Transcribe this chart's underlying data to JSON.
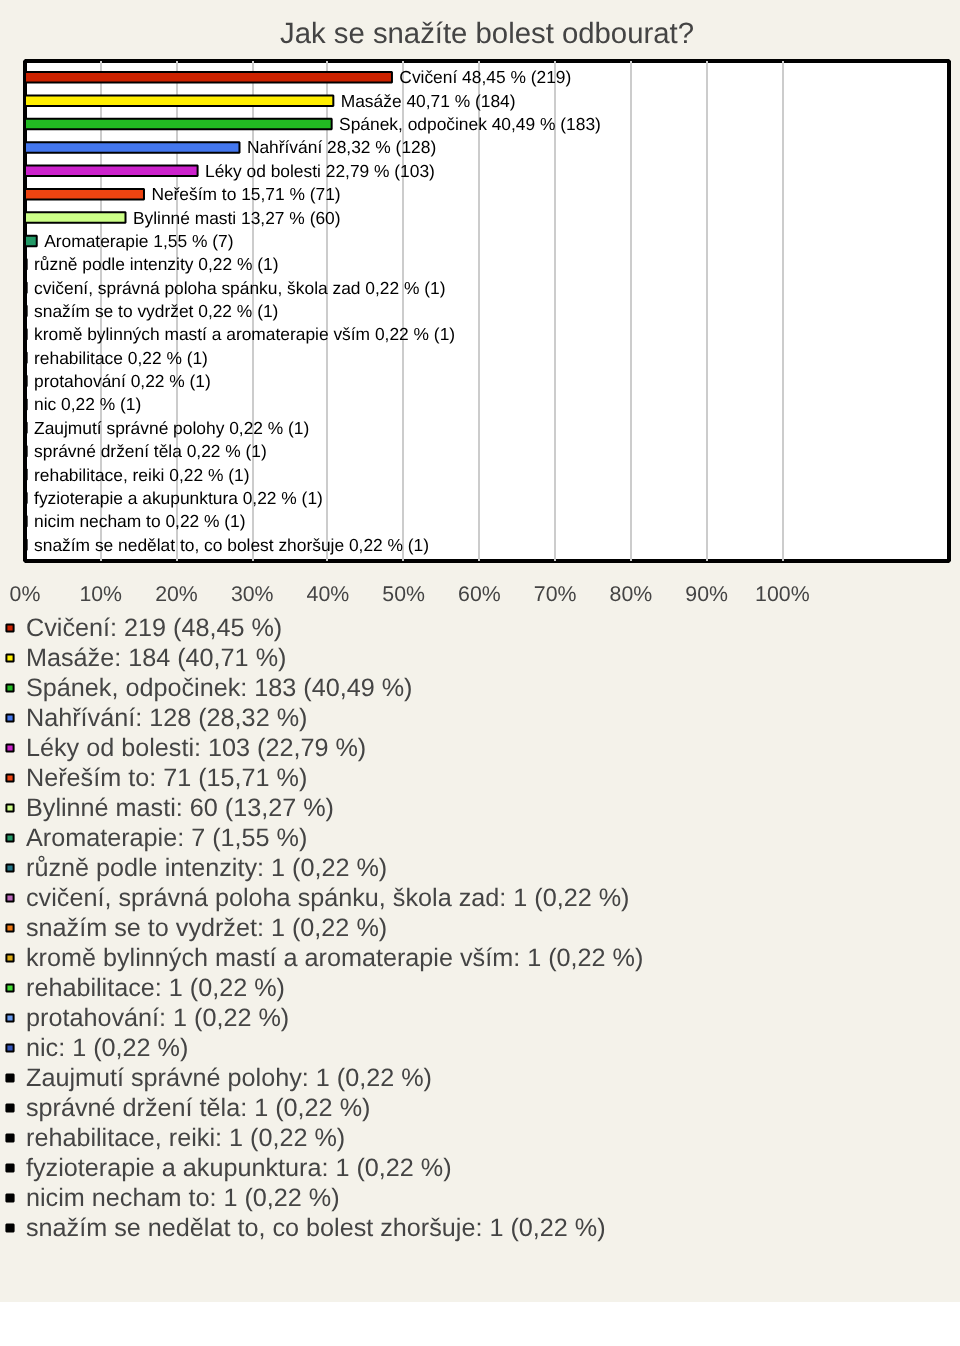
{
  "chart_data": {
    "type": "bar",
    "orientation": "horizontal",
    "title": "Jak se snažíte bolest odbourat?",
    "categories": [
      null,
      null,
      null,
      null,
      null,
      null,
      null,
      null,
      null,
      null,
      null,
      null,
      null,
      null,
      null,
      null,
      null,
      null,
      null,
      null,
      null
    ],
    "series": [
      {
        "name": "Cvičení: 219 (48,45 %)",
        "color": "#cc2200",
        "values": [
          48.45,
          null,
          null,
          null,
          null,
          null,
          null,
          null,
          null,
          null,
          null,
          null,
          null,
          null,
          null,
          null,
          null,
          null,
          null,
          null,
          null
        ],
        "value_labels": [
          "Cvičení 48,45 % (219)",
          null,
          null,
          null,
          null,
          null,
          null,
          null,
          null,
          null,
          null,
          null,
          null,
          null,
          null,
          null,
          null,
          null,
          null,
          null,
          null
        ]
      },
      {
        "name": "Masáže: 184 (40,71 %)",
        "color": "#ffee00",
        "values": [
          null,
          40.71,
          null,
          null,
          null,
          null,
          null,
          null,
          null,
          null,
          null,
          null,
          null,
          null,
          null,
          null,
          null,
          null,
          null,
          null,
          null
        ],
        "value_labels": [
          null,
          "Masáže 40,71 % (184)",
          null,
          null,
          null,
          null,
          null,
          null,
          null,
          null,
          null,
          null,
          null,
          null,
          null,
          null,
          null,
          null,
          null,
          null,
          null
        ]
      },
      {
        "name": "Spánek, odpočinek: 183 (40,49 %)",
        "color": "#22bb22",
        "values": [
          null,
          null,
          40.49,
          null,
          null,
          null,
          null,
          null,
          null,
          null,
          null,
          null,
          null,
          null,
          null,
          null,
          null,
          null,
          null,
          null,
          null
        ],
        "value_labels": [
          null,
          null,
          "Spánek, odpočinek 40,49 % (183)",
          null,
          null,
          null,
          null,
          null,
          null,
          null,
          null,
          null,
          null,
          null,
          null,
          null,
          null,
          null,
          null,
          null,
          null
        ]
      },
      {
        "name": "Nahřívání: 128 (28,32 %)",
        "color": "#4477ee",
        "values": [
          null,
          null,
          null,
          28.32,
          null,
          null,
          null,
          null,
          null,
          null,
          null,
          null,
          null,
          null,
          null,
          null,
          null,
          null,
          null,
          null,
          null
        ],
        "value_labels": [
          null,
          null,
          null,
          "Nahřívání 28,32 % (128)",
          null,
          null,
          null,
          null,
          null,
          null,
          null,
          null,
          null,
          null,
          null,
          null,
          null,
          null,
          null,
          null,
          null
        ]
      },
      {
        "name": "Léky od bolesti: 103 (22,79 %)",
        "color": "#cc22cc",
        "values": [
          null,
          null,
          null,
          null,
          22.79,
          null,
          null,
          null,
          null,
          null,
          null,
          null,
          null,
          null,
          null,
          null,
          null,
          null,
          null,
          null,
          null
        ],
        "value_labels": [
          null,
          null,
          null,
          null,
          "Léky od bolesti 22,79 % (103)",
          null,
          null,
          null,
          null,
          null,
          null,
          null,
          null,
          null,
          null,
          null,
          null,
          null,
          null,
          null,
          null
        ]
      },
      {
        "name": "Neřeším to: 71 (15,71 %)",
        "color": "#ee4411",
        "values": [
          null,
          null,
          null,
          null,
          null,
          15.71,
          null,
          null,
          null,
          null,
          null,
          null,
          null,
          null,
          null,
          null,
          null,
          null,
          null,
          null,
          null
        ],
        "value_labels": [
          null,
          null,
          null,
          null,
          null,
          "Neřeším to 15,71 % (71)",
          null,
          null,
          null,
          null,
          null,
          null,
          null,
          null,
          null,
          null,
          null,
          null,
          null,
          null,
          null
        ]
      },
      {
        "name": "Bylinné masti: 60 (13,27 %)",
        "color": "#ccff88",
        "values": [
          null,
          null,
          null,
          null,
          null,
          null,
          13.27,
          null,
          null,
          null,
          null,
          null,
          null,
          null,
          null,
          null,
          null,
          null,
          null,
          null,
          null
        ],
        "value_labels": [
          null,
          null,
          null,
          null,
          null,
          null,
          "Bylinné masti 13,27 % (60)",
          null,
          null,
          null,
          null,
          null,
          null,
          null,
          null,
          null,
          null,
          null,
          null,
          null,
          null
        ]
      },
      {
        "name": "Aromaterapie: 7 (1,55 %)",
        "color": "#229966",
        "values": [
          null,
          null,
          null,
          null,
          null,
          null,
          null,
          1.55,
          null,
          null,
          null,
          null,
          null,
          null,
          null,
          null,
          null,
          null,
          null,
          null,
          null
        ],
        "value_labels": [
          null,
          null,
          null,
          null,
          null,
          null,
          null,
          "Aromaterapie 1,55 % (7)",
          null,
          null,
          null,
          null,
          null,
          null,
          null,
          null,
          null,
          null,
          null,
          null,
          null
        ]
      },
      {
        "name": "různě podle intenzity: 1 (0,22 %)",
        "color": "#227788",
        "values": [
          null,
          null,
          null,
          null,
          null,
          null,
          null,
          null,
          0.22,
          null,
          null,
          null,
          null,
          null,
          null,
          null,
          null,
          null,
          null,
          null,
          null
        ],
        "value_labels": [
          null,
          null,
          null,
          null,
          null,
          null,
          null,
          null,
          "různě podle intenzity 0,22 % (1)",
          null,
          null,
          null,
          null,
          null,
          null,
          null,
          null,
          null,
          null,
          null,
          null
        ]
      },
      {
        "name": "cvičení, správná poloha spánku, škola zad: 1 (0,22 %)",
        "color": "#bb66bb",
        "values": [
          null,
          null,
          null,
          null,
          null,
          null,
          null,
          null,
          null,
          0.22,
          null,
          null,
          null,
          null,
          null,
          null,
          null,
          null,
          null,
          null,
          null
        ],
        "value_labels": [
          null,
          null,
          null,
          null,
          null,
          null,
          null,
          null,
          null,
          "cvičení, správná poloha spánku, škola zad 0,22 % (1)",
          null,
          null,
          null,
          null,
          null,
          null,
          null,
          null,
          null,
          null,
          null
        ]
      },
      {
        "name": "snažím se to vydržet: 1 (0,22 %)",
        "color": "#ee7711",
        "values": [
          null,
          null,
          null,
          null,
          null,
          null,
          null,
          null,
          null,
          null,
          0.22,
          null,
          null,
          null,
          null,
          null,
          null,
          null,
          null,
          null,
          null
        ],
        "value_labels": [
          null,
          null,
          null,
          null,
          null,
          null,
          null,
          null,
          null,
          null,
          "snažím se to vydržet 0,22 % (1)",
          null,
          null,
          null,
          null,
          null,
          null,
          null,
          null,
          null,
          null
        ]
      },
      {
        "name": "kromě bylinných mastí a aromaterapie vším: 1 (0,22 %)",
        "color": "#ddaa11",
        "values": [
          null,
          null,
          null,
          null,
          null,
          null,
          null,
          null,
          null,
          null,
          null,
          0.22,
          null,
          null,
          null,
          null,
          null,
          null,
          null,
          null,
          null
        ],
        "value_labels": [
          null,
          null,
          null,
          null,
          null,
          null,
          null,
          null,
          null,
          null,
          null,
          "kromě bylinných mastí a aromaterapie vším 0,22 % (1)",
          null,
          null,
          null,
          null,
          null,
          null,
          null,
          null,
          null
        ]
      },
      {
        "name": "rehabilitace: 1 (0,22 %)",
        "color": "#44dd33",
        "values": [
          null,
          null,
          null,
          null,
          null,
          null,
          null,
          null,
          null,
          null,
          null,
          null,
          0.22,
          null,
          null,
          null,
          null,
          null,
          null,
          null,
          null
        ],
        "value_labels": [
          null,
          null,
          null,
          null,
          null,
          null,
          null,
          null,
          null,
          null,
          null,
          null,
          "rehabilitace 0,22 % (1)",
          null,
          null,
          null,
          null,
          null,
          null,
          null,
          null
        ]
      },
      {
        "name": "protahování: 1 (0,22 %)",
        "color": "#6699ee",
        "values": [
          null,
          null,
          null,
          null,
          null,
          null,
          null,
          null,
          null,
          null,
          null,
          null,
          null,
          0.22,
          null,
          null,
          null,
          null,
          null,
          null,
          null
        ],
        "value_labels": [
          null,
          null,
          null,
          null,
          null,
          null,
          null,
          null,
          null,
          null,
          null,
          null,
          null,
          "protahování 0,22 % (1)",
          null,
          null,
          null,
          null,
          null,
          null,
          null
        ]
      },
      {
        "name": "nic: 1 (0,22 %)",
        "color": "#3355bb",
        "values": [
          null,
          null,
          null,
          null,
          null,
          null,
          null,
          null,
          null,
          null,
          null,
          null,
          null,
          null,
          0.22,
          null,
          null,
          null,
          null,
          null,
          null
        ],
        "value_labels": [
          null,
          null,
          null,
          null,
          null,
          null,
          null,
          null,
          null,
          null,
          null,
          null,
          null,
          null,
          "nic 0,22 % (1)",
          null,
          null,
          null,
          null,
          null,
          null
        ]
      },
      {
        "name": "Zaujmutí správné polohy: 1 (0,22 %)",
        "color": "#000000",
        "values": [
          null,
          null,
          null,
          null,
          null,
          null,
          null,
          null,
          null,
          null,
          null,
          null,
          null,
          null,
          null,
          0.22,
          null,
          null,
          null,
          null,
          null
        ],
        "value_labels": [
          null,
          null,
          null,
          null,
          null,
          null,
          null,
          null,
          null,
          null,
          null,
          null,
          null,
          null,
          null,
          "Zaujmutí správné polohy 0,22 % (1)",
          null,
          null,
          null,
          null,
          null
        ]
      },
      {
        "name": "správné držení těla: 1 (0,22 %)",
        "color": "#000000",
        "values": [
          null,
          null,
          null,
          null,
          null,
          null,
          null,
          null,
          null,
          null,
          null,
          null,
          null,
          null,
          null,
          null,
          0.22,
          null,
          null,
          null,
          null
        ],
        "value_labels": [
          null,
          null,
          null,
          null,
          null,
          null,
          null,
          null,
          null,
          null,
          null,
          null,
          null,
          null,
          null,
          null,
          "správné držení těla 0,22 % (1)",
          null,
          null,
          null,
          null
        ]
      },
      {
        "name": "rehabilitace, reiki: 1 (0,22 %)",
        "color": "#000000",
        "values": [
          null,
          null,
          null,
          null,
          null,
          null,
          null,
          null,
          null,
          null,
          null,
          null,
          null,
          null,
          null,
          null,
          null,
          0.22,
          null,
          null,
          null
        ],
        "value_labels": [
          null,
          null,
          null,
          null,
          null,
          null,
          null,
          null,
          null,
          null,
          null,
          null,
          null,
          null,
          null,
          null,
          null,
          "rehabilitace, reiki 0,22 % (1)",
          null,
          null,
          null
        ]
      },
      {
        "name": "fyzioterapie a akupunktura: 1 (0,22 %)",
        "color": "#000000",
        "values": [
          null,
          null,
          null,
          null,
          null,
          null,
          null,
          null,
          null,
          null,
          null,
          null,
          null,
          null,
          null,
          null,
          null,
          null,
          0.22,
          null,
          null
        ],
        "value_labels": [
          null,
          null,
          null,
          null,
          null,
          null,
          null,
          null,
          null,
          null,
          null,
          null,
          null,
          null,
          null,
          null,
          null,
          null,
          "fyzioterapie a akupunktura 0,22 % (1)",
          null,
          null
        ]
      },
      {
        "name": "nicim necham to: 1 (0,22 %)",
        "color": "#000000",
        "values": [
          null,
          null,
          null,
          null,
          null,
          null,
          null,
          null,
          null,
          null,
          null,
          null,
          null,
          null,
          null,
          null,
          null,
          null,
          null,
          0.22,
          null
        ],
        "value_labels": [
          null,
          null,
          null,
          null,
          null,
          null,
          null,
          null,
          null,
          null,
          null,
          null,
          null,
          null,
          null,
          null,
          null,
          null,
          null,
          "nicim necham to 0,22 % (1)",
          null
        ]
      },
      {
        "name": "snažím se nedělat to, co bolest zhoršuje: 1 (0,22 %)",
        "color": "#000000",
        "values": [
          null,
          null,
          null,
          null,
          null,
          null,
          null,
          null,
          null,
          null,
          null,
          null,
          null,
          null,
          null,
          null,
          null,
          null,
          null,
          null,
          0.22
        ],
        "value_labels": [
          null,
          null,
          null,
          null,
          null,
          null,
          null,
          null,
          null,
          null,
          null,
          null,
          null,
          null,
          null,
          null,
          null,
          null,
          null,
          null,
          "snažím se nedělat to, co bolest zhoršuje 0,22 % (1)"
        ]
      }
    ],
    "xlim": [
      0,
      122
    ],
    "xticks": [
      {
        "value": 0,
        "label": "0%"
      },
      {
        "value": 10,
        "label": "10%"
      },
      {
        "value": 20,
        "label": "20%"
      },
      {
        "value": 30,
        "label": "30%"
      },
      {
        "value": 40,
        "label": "40%"
      },
      {
        "value": 50,
        "label": "50%"
      },
      {
        "value": 60,
        "label": "60%"
      },
      {
        "value": 70,
        "label": "70%"
      },
      {
        "value": 80,
        "label": "80%"
      },
      {
        "value": 90,
        "label": "90%"
      },
      {
        "value": 100,
        "label": "100%"
      }
    ],
    "grid": "x",
    "legend": "bottom"
  }
}
